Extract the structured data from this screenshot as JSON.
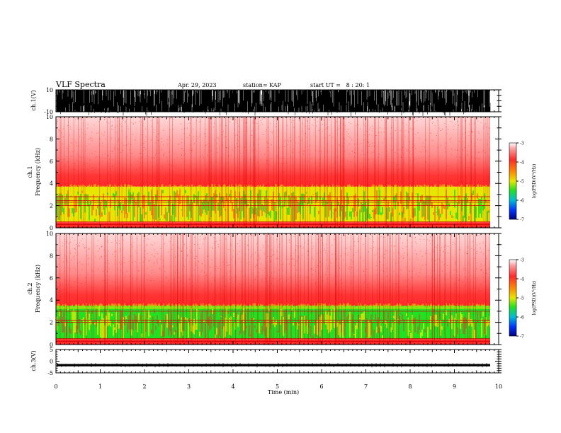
{
  "header": {
    "title": "VLF Spectra",
    "date": "Apr. 29, 2023",
    "station": "station= KAP",
    "start_ut": "start UT =   8 : 20: 1"
  },
  "colors": {
    "red": "#ff2a2a",
    "yellow": "#e6e600",
    "green": "#22e022",
    "blue": "#0033ff",
    "navy": "#00007a"
  },
  "chart_data": [
    {
      "type": "line",
      "panel": "ch1-waveform",
      "ylabel": "ch.1(V)",
      "ylim": [
        -10,
        10
      ],
      "y_tick_labels": [
        "10",
        "-10"
      ],
      "x_range_min": [
        0,
        9.83
      ],
      "description_level": "saturated noisy waveform between -10 and 10 V"
    },
    {
      "type": "heatmap",
      "panel": "ch1-spectrogram",
      "ylabel": "ch.1\nFrequency (kHz)",
      "ylim": [
        0,
        10
      ],
      "y_tick_labels": [
        "0",
        "2",
        "4",
        "6",
        "8",
        "10"
      ],
      "bands": [
        {
          "from_khz": 0,
          "to_khz": 0.5,
          "level": "red"
        },
        {
          "from_khz": 0.5,
          "to_khz": 3.7,
          "level": "yellow-green"
        },
        {
          "from_khz": 3.7,
          "to_khz": 10,
          "level": "red fading to white"
        }
      ],
      "colorbar": {
        "label": "log(PSD)(V²/Hz)",
        "ticks": [
          "-3",
          "-4",
          "-5",
          "-6",
          "-7"
        ],
        "range": [
          -7,
          -3
        ]
      }
    },
    {
      "type": "heatmap",
      "panel": "ch2-spectrogram",
      "ylabel": "ch.2\nFrequency (kHz)",
      "ylim": [
        0,
        10
      ],
      "y_tick_labels": [
        "0",
        "2",
        "4",
        "6",
        "8",
        "10"
      ],
      "bands": [
        {
          "from_khz": 0,
          "to_khz": 0.5,
          "level": "red"
        },
        {
          "from_khz": 0.5,
          "to_khz": 3.5,
          "level": "green-yellow"
        },
        {
          "from_khz": 3.5,
          "to_khz": 10,
          "level": "red fading to white"
        }
      ],
      "colorbar": {
        "label": "log(PSD)(V²/Hz)",
        "ticks": [
          "-3",
          "-4",
          "-5",
          "-6",
          "-7"
        ],
        "range": [
          -7,
          -3
        ]
      }
    },
    {
      "type": "line",
      "panel": "ch3-waveform",
      "ylabel": "ch.3(V)",
      "ylim": [
        -5,
        5
      ],
      "y_tick_labels": [
        "5",
        "0",
        "-5"
      ],
      "value_level": [
        -2.2,
        -1.2
      ]
    }
  ],
  "x_axis": {
    "label": "Time (min)",
    "range": [
      0,
      10
    ],
    "tick_labels": [
      "0",
      "1",
      "2",
      "3",
      "4",
      "5",
      "6",
      "7",
      "8",
      "9",
      "10"
    ]
  }
}
